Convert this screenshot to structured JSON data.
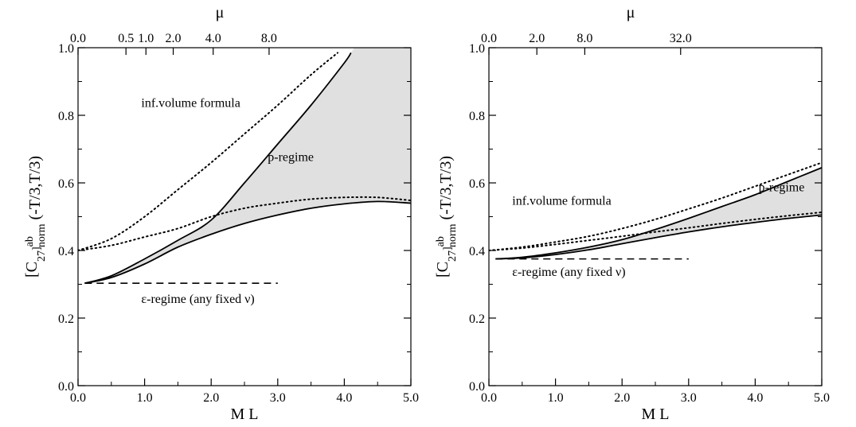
{
  "chart_data": [
    {
      "type": "line",
      "xlabel": "M L",
      "ylabel_main": "[C",
      "ylabel_sub": "27",
      "ylabel_bracket": "]",
      "ylabel_sup": "ab",
      "ylabel_sub2": "norm",
      "ylabel_tail": " (-T/3,T/3)",
      "top_axis_label": "μ",
      "xlim": [
        0.0,
        5.0
      ],
      "ylim": [
        0.0,
        1.0
      ],
      "x_ticks": [
        {
          "v": 0,
          "label": "0.0"
        },
        {
          "v": 1,
          "label": "1.0"
        },
        {
          "v": 2,
          "label": "2.0"
        },
        {
          "v": 3,
          "label": "3.0"
        },
        {
          "v": 4,
          "label": "4.0"
        },
        {
          "v": 5,
          "label": "5.0"
        }
      ],
      "y_ticks": [
        {
          "v": 0,
          "label": "0.0"
        },
        {
          "v": 0.2,
          "label": "0.2"
        },
        {
          "v": 0.4,
          "label": "0.4"
        },
        {
          "v": 0.6,
          "label": "0.6"
        },
        {
          "v": 0.8,
          "label": "0.8"
        },
        {
          "v": 1.0,
          "label": "1.0"
        }
      ],
      "top_ticks": [
        {
          "v": 0.0,
          "label": "0.0"
        },
        {
          "v": 0.72,
          "label": "0.5"
        },
        {
          "v": 1.02,
          "label": "1.0"
        },
        {
          "v": 1.43,
          "label": "2.0"
        },
        {
          "v": 2.03,
          "label": "4.0"
        },
        {
          "v": 2.87,
          "label": "8.0"
        }
      ],
      "annotations": [
        {
          "text": "inf.volume formula",
          "x": 0.95,
          "y": 0.825
        },
        {
          "text": "p-regime",
          "x": 2.85,
          "y": 0.665
        },
        {
          "text": "ε-regime (any fixed ν)",
          "x": 0.95,
          "y": 0.245
        }
      ],
      "series": [
        {
          "style": "solid",
          "role": "p-regime upper",
          "x": [
            0.1,
            0.5,
            1.0,
            1.5,
            2.0,
            2.5,
            3.0,
            3.5,
            4.0,
            4.1
          ],
          "y": [
            0.303,
            0.325,
            0.375,
            0.43,
            0.49,
            0.6,
            0.715,
            0.83,
            0.955,
            0.985
          ]
        },
        {
          "style": "solid",
          "role": "p-regime lower",
          "x": [
            0.1,
            0.5,
            1.0,
            1.5,
            2.0,
            2.5,
            3.0,
            3.5,
            4.0,
            4.5,
            5.0
          ],
          "y": [
            0.303,
            0.32,
            0.36,
            0.41,
            0.448,
            0.48,
            0.505,
            0.525,
            0.538,
            0.545,
            0.54
          ]
        },
        {
          "style": "dotted",
          "role": "inf.volume formula",
          "x": [
            0.0,
            0.5,
            1.0,
            1.5,
            2.0,
            2.5,
            3.0,
            3.5,
            3.9
          ],
          "y": [
            0.4,
            0.435,
            0.5,
            0.58,
            0.66,
            0.745,
            0.83,
            0.92,
            0.985
          ]
        },
        {
          "style": "dotted",
          "role": "second dotted",
          "x": [
            0.0,
            0.5,
            1.0,
            1.5,
            2.0,
            2.5,
            3.0,
            3.5,
            4.0,
            4.5,
            5.0
          ],
          "y": [
            0.4,
            0.415,
            0.44,
            0.465,
            0.5,
            0.525,
            0.54,
            0.552,
            0.557,
            0.557,
            0.548
          ]
        },
        {
          "style": "dashed",
          "role": "ε-regime",
          "x": [
            0.1,
            3.0
          ],
          "y": [
            0.303,
            0.303
          ]
        }
      ],
      "shaded_region": {
        "between": [
          "p-regime upper",
          "p-regime lower"
        ],
        "color": "#e0e0e0",
        "x_max_upper": 5.0
      }
    },
    {
      "type": "line",
      "xlabel": "M L",
      "ylabel_main": "[C",
      "ylabel_sub": "27",
      "ylabel_bracket": "]",
      "ylabel_sup": "ab",
      "ylabel_sub2": "norm",
      "ylabel_tail": " (-T/3,T/3)",
      "top_axis_label": "μ",
      "xlim": [
        0.0,
        5.0
      ],
      "ylim": [
        0.0,
        1.0
      ],
      "x_ticks": [
        {
          "v": 0,
          "label": "0.0"
        },
        {
          "v": 1,
          "label": "1.0"
        },
        {
          "v": 2,
          "label": "2.0"
        },
        {
          "v": 3,
          "label": "3.0"
        },
        {
          "v": 4,
          "label": "4.0"
        },
        {
          "v": 5,
          "label": "5.0"
        }
      ],
      "y_ticks": [
        {
          "v": 0,
          "label": "0.0"
        },
        {
          "v": 0.2,
          "label": "0.2"
        },
        {
          "v": 0.4,
          "label": "0.4"
        },
        {
          "v": 0.6,
          "label": "0.6"
        },
        {
          "v": 0.8,
          "label": "0.8"
        },
        {
          "v": 1.0,
          "label": "1.0"
        }
      ],
      "top_ticks": [
        {
          "v": 0.0,
          "label": "0.0"
        },
        {
          "v": 0.72,
          "label": "2.0"
        },
        {
          "v": 1.44,
          "label": "8.0"
        },
        {
          "v": 2.88,
          "label": "32.0"
        }
      ],
      "annotations": [
        {
          "text": "inf.volume formula",
          "x": 0.35,
          "y": 0.535
        },
        {
          "text": "p-regime",
          "x": 4.05,
          "y": 0.575
        },
        {
          "text": "ε-regime (any fixed ν)",
          "x": 0.35,
          "y": 0.325
        }
      ],
      "series": [
        {
          "style": "solid",
          "role": "p-regime upper",
          "x": [
            0.1,
            0.5,
            1.0,
            1.5,
            2.0,
            2.5,
            3.0,
            3.5,
            4.0,
            4.5,
            5.0
          ],
          "y": [
            0.375,
            0.38,
            0.393,
            0.41,
            0.432,
            0.462,
            0.495,
            0.53,
            0.565,
            0.605,
            0.645
          ]
        },
        {
          "style": "solid",
          "role": "p-regime lower",
          "x": [
            0.1,
            0.5,
            1.0,
            1.5,
            2.0,
            2.5,
            3.0,
            3.5,
            4.0,
            4.5,
            5.0
          ],
          "y": [
            0.375,
            0.378,
            0.388,
            0.402,
            0.42,
            0.438,
            0.455,
            0.47,
            0.483,
            0.495,
            0.505
          ]
        },
        {
          "style": "dotted",
          "role": "inf.volume formula",
          "x": [
            0.0,
            0.5,
            1.0,
            1.5,
            2.0,
            2.5,
            3.0,
            3.5,
            4.0,
            4.5,
            5.0
          ],
          "y": [
            0.4,
            0.41,
            0.425,
            0.442,
            0.465,
            0.492,
            0.523,
            0.555,
            0.59,
            0.625,
            0.66
          ]
        },
        {
          "style": "dotted",
          "role": "second dotted",
          "x": [
            0.0,
            0.5,
            1.0,
            1.5,
            2.0,
            2.5,
            3.0,
            3.5,
            4.0,
            4.5,
            5.0
          ],
          "y": [
            0.4,
            0.407,
            0.418,
            0.43,
            0.442,
            0.455,
            0.467,
            0.48,
            0.492,
            0.503,
            0.513
          ]
        },
        {
          "style": "dashed",
          "role": "ε-regime",
          "x": [
            0.1,
            3.0
          ],
          "y": [
            0.375,
            0.375
          ]
        }
      ],
      "shaded_region": {
        "between": [
          "p-regime upper",
          "p-regime lower"
        ],
        "color": "#e0e0e0",
        "x_max_upper": 5.0
      }
    }
  ]
}
